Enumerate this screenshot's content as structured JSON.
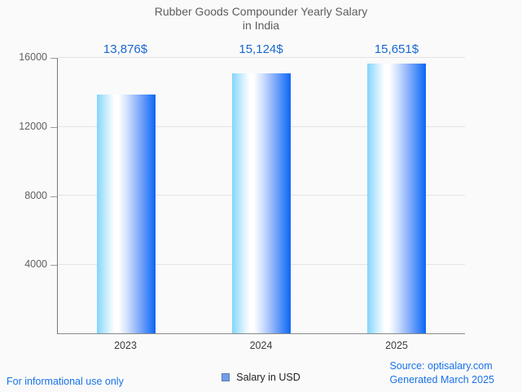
{
  "title": {
    "line1": "Rubber Goods Compounder Yearly Salary",
    "line2": "in India"
  },
  "chart_data": {
    "type": "bar",
    "title": "Rubber Goods Compounder Yearly Salary in India",
    "categories": [
      "2023",
      "2024",
      "2025"
    ],
    "values": [
      13876,
      15124,
      15651
    ],
    "value_labels": [
      "13,876$",
      "15,124$",
      "15,651$"
    ],
    "series_name": "Salary in USD",
    "xlabel": "",
    "ylabel": "",
    "ylim": [
      0,
      16000
    ],
    "yticks": [
      4000,
      8000,
      12000,
      16000
    ],
    "ytick_labels": [
      "4000",
      "8000",
      "12000",
      "16000"
    ],
    "grid": "horizontal",
    "legend_position": "bottom-center",
    "bar_center_percents": [
      16.77,
      50,
      83.23
    ]
  },
  "legend": {
    "label": "Salary in USD",
    "marker_color": "#6d9eeb"
  },
  "footer": {
    "left_note": "For informational use only",
    "source_line1": "Source: optisalary.com",
    "source_line2": "Generated March 2025"
  },
  "colors": {
    "accent_blue": "#1a73e8",
    "value_label_blue": "#1967d2",
    "bar_gradient_left": "#82d5fb",
    "bar_gradient_middle": "#ffffff",
    "bar_gradient_right": "#0d66f3",
    "gridline": "#e3e3e3",
    "axis": "#8a8a8a",
    "title_gray": "#5c5d60",
    "background": "#fafafa"
  }
}
